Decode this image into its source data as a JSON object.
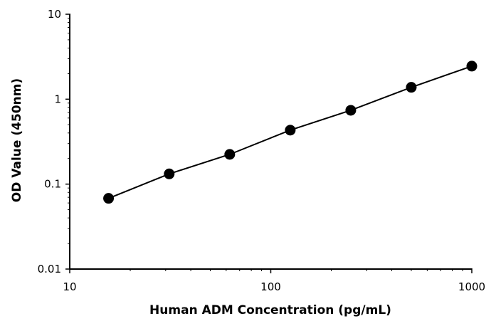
{
  "chart_data": {
    "type": "scatter",
    "title": "",
    "xlabel": "Human ADM Concentration (pg/mL)",
    "ylabel": "OD Value (450nm)",
    "x_scale": "log",
    "y_scale": "log",
    "xlim": [
      10,
      1000
    ],
    "ylim": [
      0.01,
      10
    ],
    "x_ticks": [
      10,
      100,
      1000
    ],
    "x_tick_labels": [
      "10",
      "100",
      "1000"
    ],
    "y_ticks": [
      0.01,
      0.1,
      1,
      10
    ],
    "y_tick_labels": [
      "0.01",
      "0.1",
      "1",
      "10"
    ],
    "grid": false,
    "legend": "none",
    "series": [
      {
        "x": [
          15.6,
          31.25,
          62.5,
          125,
          250,
          500,
          1000
        ],
        "y": [
          0.068,
          0.132,
          0.224,
          0.432,
          0.74,
          1.38,
          2.45
        ],
        "color": "#000000",
        "marker": "circle",
        "connect": true
      }
    ]
  }
}
